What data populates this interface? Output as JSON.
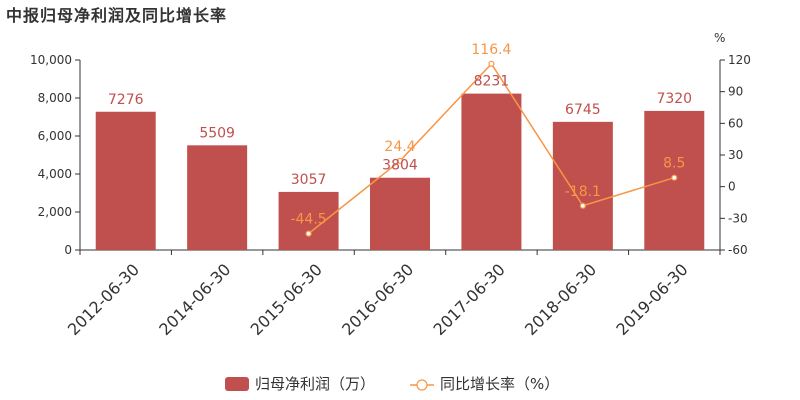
{
  "chart_data": {
    "type": "bar",
    "title": "中报归母净利润及同比增长率",
    "categories": [
      "2012-06-30",
      "2014-06-30",
      "2015-06-30",
      "2016-06-30",
      "2017-06-30",
      "2018-06-30",
      "2019-06-30"
    ],
    "series": [
      {
        "name": "归母净利润（万）",
        "type": "bar",
        "axis": "left",
        "values": [
          7276,
          5509,
          3057,
          3804,
          8231,
          6745,
          7320
        ],
        "labels": [
          "7276",
          "5509",
          "3057",
          "3804",
          "8231",
          "6745",
          "7320"
        ],
        "color": "#c0504d"
      },
      {
        "name": "同比增长率（%）",
        "type": "line",
        "axis": "right",
        "values": [
          null,
          null,
          -44.5,
          24.4,
          116.4,
          -18.1,
          8.5
        ],
        "labels": [
          "",
          "",
          "-44.5",
          "24.4",
          "116.4",
          "-18.1",
          "8.5"
        ],
        "color": "#f79646"
      }
    ],
    "y_left": {
      "ylim": [
        0,
        10000
      ],
      "ticks": [
        0,
        2000,
        4000,
        6000,
        8000,
        10000
      ],
      "tick_labels": [
        "0",
        "2,000",
        "4,000",
        "6,000",
        "8,000",
        "10,000"
      ]
    },
    "y_right": {
      "unit": "%",
      "ylim": [
        -60,
        120
      ],
      "ticks": [
        -60,
        -30,
        0,
        30,
        60,
        90,
        120
      ],
      "tick_labels": [
        "-60",
        "-30",
        "0",
        "30",
        "60",
        "90",
        "120"
      ]
    },
    "grid": false,
    "legend_position": "bottom"
  }
}
